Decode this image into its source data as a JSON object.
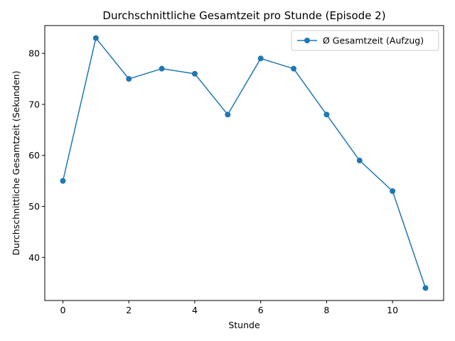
{
  "chart_data": {
    "type": "line",
    "title": "Durchschnittliche Gesamtzeit pro Stunde (Episode 2)",
    "xlabel": "Stunde",
    "ylabel": "Durchschnittliche Gesamtzeit (Sekunden)",
    "xlim": [
      -0.55,
      11.55
    ],
    "ylim": [
      31.55,
      85.45
    ],
    "xticks": [
      0,
      2,
      4,
      6,
      8,
      10
    ],
    "yticks": [
      40,
      50,
      60,
      70,
      80
    ],
    "grid": false,
    "legend_position": "top-right",
    "series": [
      {
        "name": "Ø Gesamtzeit (Aufzug)",
        "color": "#1f77b4",
        "marker": "circle",
        "x": [
          0,
          1,
          2,
          3,
          4,
          5,
          6,
          7,
          8,
          9,
          10,
          11
        ],
        "y": [
          55,
          83,
          75,
          77,
          76,
          68,
          79,
          77,
          68,
          59,
          53,
          34
        ]
      }
    ]
  }
}
